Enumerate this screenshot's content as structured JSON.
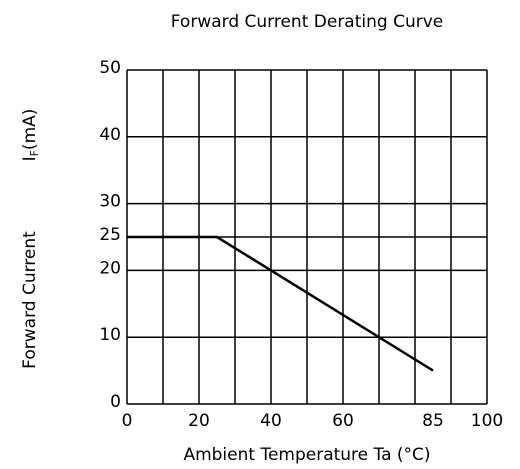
{
  "chart_data": {
    "type": "line",
    "title": "Forward Current Derating Curve",
    "x_label": "Ambient Temperature Ta (°C)",
    "y_label": "Forward Current",
    "y_unit": [
      "I",
      "F",
      "(mA)"
    ],
    "x": [
      0,
      25,
      85
    ],
    "series": [
      {
        "values": [
          25,
          25,
          5
        ],
        "color": "#000000"
      }
    ],
    "xlim": [
      0,
      100
    ],
    "xticks": [
      0,
      20,
      40,
      60,
      85,
      100
    ],
    "ylim": [
      0,
      50
    ],
    "yticks": [
      0,
      10,
      20,
      25,
      30,
      40,
      50
    ],
    "xgrid": [
      0,
      10,
      20,
      30,
      40,
      50,
      60,
      70,
      80,
      90,
      100
    ],
    "grid": true
  }
}
